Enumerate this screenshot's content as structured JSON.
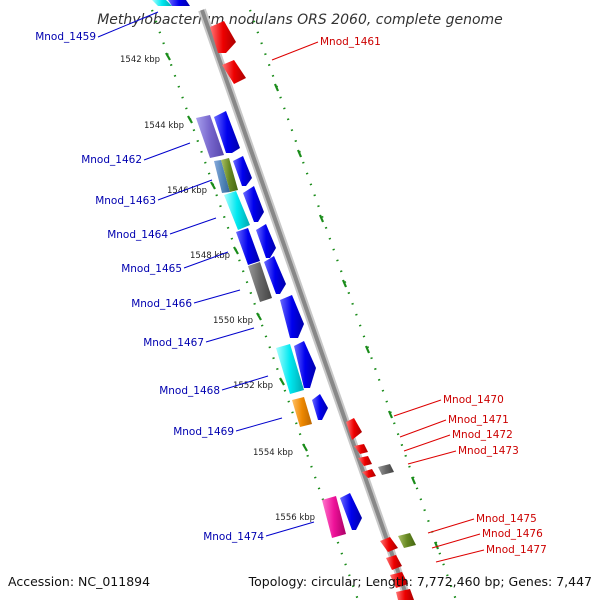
{
  "title": "Methylobacterium nodulans ORS 2060, complete genome",
  "accession": "Accession: NC_011894",
  "topology": "Topology: circular; Length: 7,772,460 bp; Genes: 7,447",
  "colors": {
    "forward": "#0000ee",
    "reverse": "#ee0000",
    "backbone": "#888888",
    "ticks": "#1a8c1a",
    "label_left": "#0000b0",
    "label_right": "#cc0000",
    "label_line_left": "#0000cc",
    "label_line_right": "#dd0000"
  },
  "kbp_marks": [
    {
      "label": "1542 kbp",
      "pos": 1542
    },
    {
      "label": "1544 kbp",
      "pos": 1544
    },
    {
      "label": "1546 kbp",
      "pos": 1546
    },
    {
      "label": "1548 kbp",
      "pos": 1548
    },
    {
      "label": "1550 kbp",
      "pos": 1550
    },
    {
      "label": "1552 kbp",
      "pos": 1552
    },
    {
      "label": "1554 kbp",
      "pos": 1554
    },
    {
      "label": "1556 kbp",
      "pos": 1556
    }
  ],
  "genes_left": [
    {
      "id": "Mnod_1459",
      "color": "#0000ee"
    },
    {
      "id": "Mnod_1462",
      "color": "#7766cc"
    },
    {
      "id": "Mnod_1463",
      "color": "#5588bb"
    },
    {
      "id": "Mnod_1464",
      "color": "#00e0e8"
    },
    {
      "id": "Mnod_1465",
      "color": "#0000ee"
    },
    {
      "id": "Mnod_1466",
      "color": "#666666"
    },
    {
      "id": "Mnod_1467",
      "color": "#0000ee"
    },
    {
      "id": "Mnod_1468",
      "color": "#00e0e8"
    },
    {
      "id": "Mnod_1469",
      "color": "#ee8800"
    },
    {
      "id": "Mnod_1474",
      "color": "#ee1199"
    }
  ],
  "genes_right": [
    {
      "id": "Mnod_1461",
      "color": "#ee0000"
    },
    {
      "id": "Mnod_1470",
      "color": "#ee0000"
    },
    {
      "id": "Mnod_1471",
      "color": "#ee0000"
    },
    {
      "id": "Mnod_1472",
      "color": "#ee0000"
    },
    {
      "id": "Mnod_1473",
      "color": "#666666"
    },
    {
      "id": "Mnod_1475",
      "color": "#668822"
    },
    {
      "id": "Mnod_1476",
      "color": "#ee0000"
    },
    {
      "id": "Mnod_1477",
      "color": "#ee0000"
    }
  ]
}
